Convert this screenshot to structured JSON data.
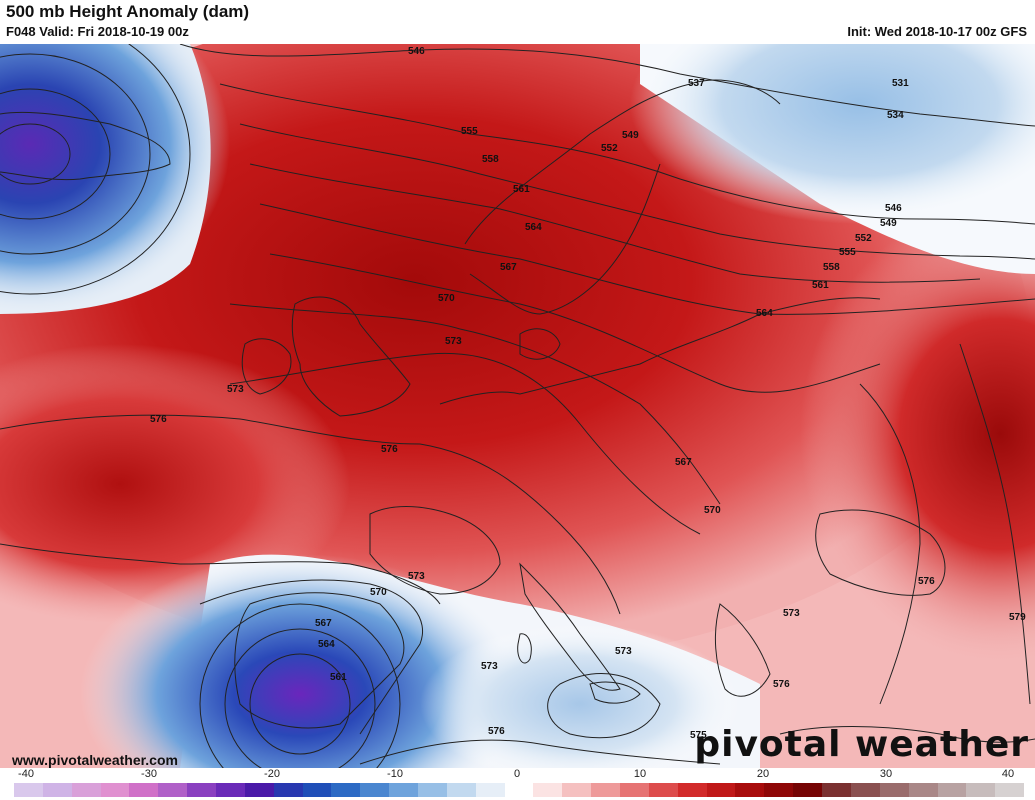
{
  "header": {
    "title": "500 mb Height Anomaly (dam)",
    "valid": "F048 Valid: Fri 2018-10-19 00z",
    "init": "Init: Wed 2018-10-17 00z GFS"
  },
  "footer": {
    "website": "www.pivotalweather.com",
    "logo": "pivotal weather"
  },
  "contour_labels": [
    {
      "text": "546",
      "name": "contour-546-north"
    },
    {
      "text": "537",
      "name": "contour-537"
    },
    {
      "text": "531",
      "name": "contour-531"
    },
    {
      "text": "534",
      "name": "contour-534"
    },
    {
      "text": "549",
      "name": "contour-549-norway"
    },
    {
      "text": "552",
      "name": "contour-552-norway"
    },
    {
      "text": "555",
      "name": "contour-555-sea"
    },
    {
      "text": "558",
      "name": "contour-558-sea"
    },
    {
      "text": "561",
      "name": "contour-561-norway"
    },
    {
      "text": "564",
      "name": "contour-564-norway"
    },
    {
      "text": "567",
      "name": "contour-567-denmark"
    },
    {
      "text": "570",
      "name": "contour-570-northsea"
    },
    {
      "text": "573",
      "name": "contour-573-netherlands"
    },
    {
      "text": "573",
      "name": "contour-573-ireland"
    },
    {
      "text": "576",
      "name": "contour-576-atlantic"
    },
    {
      "text": "576",
      "name": "contour-576-france"
    },
    {
      "text": "546",
      "name": "contour-546-russia"
    },
    {
      "text": "549",
      "name": "contour-549-russia"
    },
    {
      "text": "552",
      "name": "contour-552-russia"
    },
    {
      "text": "555",
      "name": "contour-555-russia"
    },
    {
      "text": "558",
      "name": "contour-558-russia"
    },
    {
      "text": "561",
      "name": "contour-561-russia"
    },
    {
      "text": "564",
      "name": "contour-564-belarus"
    },
    {
      "text": "567",
      "name": "contour-567-hungary"
    },
    {
      "text": "570",
      "name": "contour-570-balkans"
    },
    {
      "text": "576",
      "name": "contour-576-blacksea"
    },
    {
      "text": "579",
      "name": "contour-579-turkey"
    },
    {
      "text": "573",
      "name": "contour-573-greece"
    },
    {
      "text": "576",
      "name": "contour-576-aegean"
    },
    {
      "text": "573",
      "name": "contour-573-sicily"
    },
    {
      "text": "573",
      "name": "contour-573-med"
    },
    {
      "text": "576",
      "name": "contour-576-africa"
    },
    {
      "text": "573",
      "name": "contour-573-iberia"
    },
    {
      "text": "570",
      "name": "contour-570-iberia"
    },
    {
      "text": "567",
      "name": "contour-567-iberia"
    },
    {
      "text": "564",
      "name": "contour-564-iberia"
    },
    {
      "text": "561",
      "name": "contour-561-iberia"
    },
    {
      "text": "575",
      "name": "contour-575-libya"
    }
  ],
  "colorbar": {
    "ticks": [
      "-40",
      "-30",
      "-20",
      "-10",
      "0",
      "10",
      "20",
      "30",
      "40"
    ],
    "colors": [
      "#d9c8ec",
      "#cfb3e6",
      "#d9a0d9",
      "#e090d0",
      "#d070c8",
      "#b060c8",
      "#8a40c0",
      "#6a2ab8",
      "#4a1aa8",
      "#2838b0",
      "#1f4fb8",
      "#2c6ac4",
      "#4a86d0",
      "#6ea3dc",
      "#97bfe6",
      "#c2d9ef",
      "#e6eef7",
      "#ffffff",
      "#fbe3e3",
      "#f5c0c0",
      "#ee9a9a",
      "#e67373",
      "#dd4c4c",
      "#d22a2a",
      "#c01818",
      "#a80c0c",
      "#8f0707",
      "#760404",
      "#7a3030",
      "#8a5050",
      "#9a6c6c",
      "#a98787",
      "#b8a2a2",
      "#c7bcbc",
      "#d6d1d1"
    ]
  }
}
